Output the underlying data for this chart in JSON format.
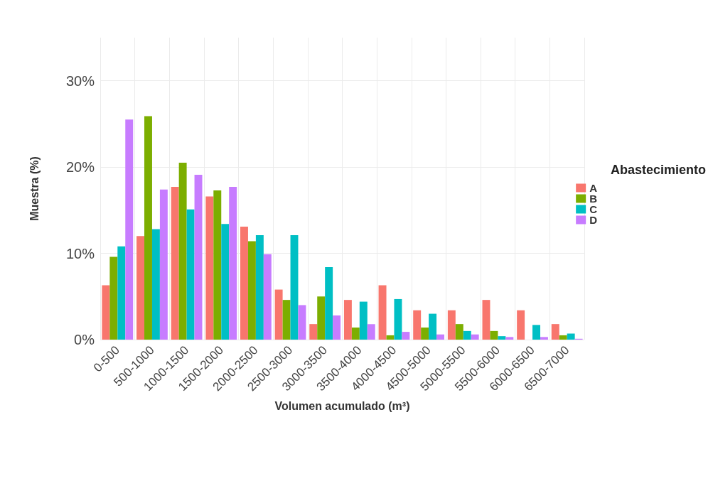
{
  "chart_data": {
    "type": "bar",
    "xlabel": "Volumen acumulado (m³)",
    "ylabel": "Muestra (%)",
    "legend_title": "Abastecimiento",
    "legend": "right",
    "grid": true,
    "categories": [
      "0-500",
      "500-1000",
      "1000-1500",
      "1500-2000",
      "2000-2500",
      "2500-3000",
      "3000-3500",
      "3500-4000",
      "4000-4500",
      "4500-5000",
      "5000-5500",
      "5500-6000",
      "6000-6500",
      "6500-7000"
    ],
    "ylim": [
      0,
      35
    ],
    "yticks": [
      {
        "value": 0,
        "label": "0%"
      },
      {
        "value": 10,
        "label": "10%"
      },
      {
        "value": 20,
        "label": "20%"
      },
      {
        "value": 30,
        "label": "30%"
      }
    ],
    "series": [
      {
        "name": "A",
        "color": "#f8766d",
        "values": [
          6.3,
          12.0,
          17.7,
          16.6,
          13.1,
          5.8,
          1.8,
          4.6,
          6.3,
          3.4,
          3.4,
          4.6,
          3.4,
          1.8
        ]
      },
      {
        "name": "B",
        "color": "#7cae00",
        "values": [
          9.6,
          25.9,
          20.5,
          17.3,
          11.4,
          4.6,
          5.0,
          1.4,
          0.5,
          1.4,
          1.8,
          1.0,
          null,
          0.5
        ]
      },
      {
        "name": "C",
        "color": "#00bfc4",
        "values": [
          10.8,
          12.8,
          15.1,
          13.4,
          12.1,
          12.1,
          8.4,
          4.4,
          4.7,
          3.0,
          1.0,
          0.4,
          1.7,
          0.7
        ]
      },
      {
        "name": "D",
        "color": "#c77cff",
        "values": [
          25.5,
          17.4,
          19.1,
          17.7,
          9.9,
          4.0,
          2.8,
          1.8,
          0.9,
          0.6,
          0.6,
          0.3,
          0.3,
          0.1
        ]
      }
    ]
  }
}
